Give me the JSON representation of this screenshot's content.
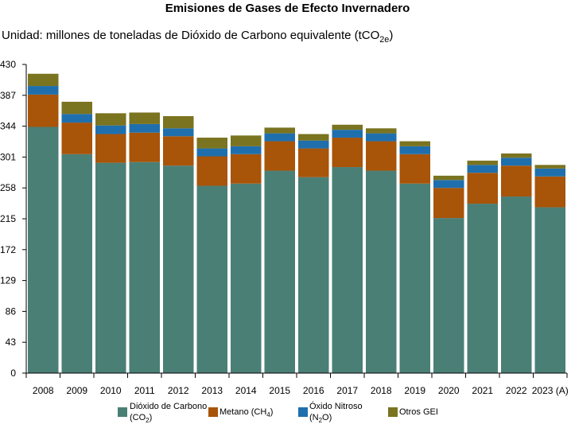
{
  "chart_data": {
    "type": "bar",
    "stacked": true,
    "title": "Emisiones de Gases de Efecto Invernadero",
    "subtitle": {
      "text": "Unidad: millones de toneladas de Dióxido de Carbono equivalente (tCO",
      "sub": "2e",
      "close": ")"
    },
    "categories": [
      "2008",
      "2009",
      "2010",
      "2011",
      "2012",
      "2013",
      "2014",
      "2015",
      "2016",
      "2017",
      "2018",
      "2019",
      "2020",
      "2021",
      "2022",
      "2023 (A)"
    ],
    "y_ticks": [
      "0",
      "43",
      "86",
      "129",
      "172",
      "215",
      "258",
      "301",
      "344",
      "387",
      "430"
    ],
    "ylim": [
      0,
      430
    ],
    "grid": false,
    "legend_position": "bottom",
    "series": [
      {
        "name": "Dióxido de Carbono (CO2)",
        "legend_main": "Dióxido de Carbono",
        "legend_paren_open": "(CO",
        "legend_sub": "2",
        "legend_paren_close": ")",
        "color": "#4a7f76",
        "values": [
          343,
          305,
          293,
          294,
          289,
          261,
          264,
          282,
          273,
          287,
          282,
          264,
          216,
          236,
          246,
          231
        ]
      },
      {
        "name": "Metano (CH4)",
        "legend_main": "Metano (CH",
        "legend_sub": "4",
        "legend_paren_close": ")",
        "color": "#a85409",
        "values": [
          45,
          44,
          40,
          41,
          41,
          41,
          41,
          41,
          40,
          41,
          41,
          41,
          42,
          43,
          43,
          43
        ]
      },
      {
        "name": "Óxido Nitroso (N2O)",
        "legend_main": "Óxido Nitroso",
        "legend_paren_open": "(N",
        "legend_sub": "2",
        "legend_paren_close": "O)",
        "color": "#1f6fad",
        "values": [
          12,
          12,
          12,
          12,
          11,
          11,
          11,
          11,
          11,
          11,
          11,
          11,
          11,
          11,
          11,
          11
        ]
      },
      {
        "name": "Otros GEI",
        "legend_main": "Otros GEI",
        "color": "#7a7320",
        "values": [
          17,
          17,
          17,
          16,
          17,
          15,
          15,
          8,
          9,
          7,
          7,
          7,
          6,
          6,
          6,
          5
        ]
      }
    ]
  }
}
